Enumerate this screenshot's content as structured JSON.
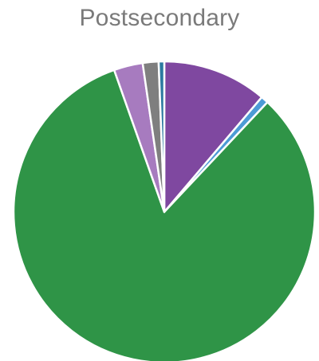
{
  "chart_data": {
    "type": "pie",
    "title": "Postsecondary",
    "categories": [
      "",
      "",
      "",
      "",
      "",
      ""
    ],
    "values": [
      11.2,
      0.8,
      82.6,
      3.1,
      1.7,
      0.6
    ],
    "colors": [
      "#7f48a0",
      "#4c9bd6",
      "#2f9447",
      "#a77bbf",
      "#7f7f7f",
      "#2c7aa0"
    ],
    "legend": "none",
    "data_labels": false
  }
}
